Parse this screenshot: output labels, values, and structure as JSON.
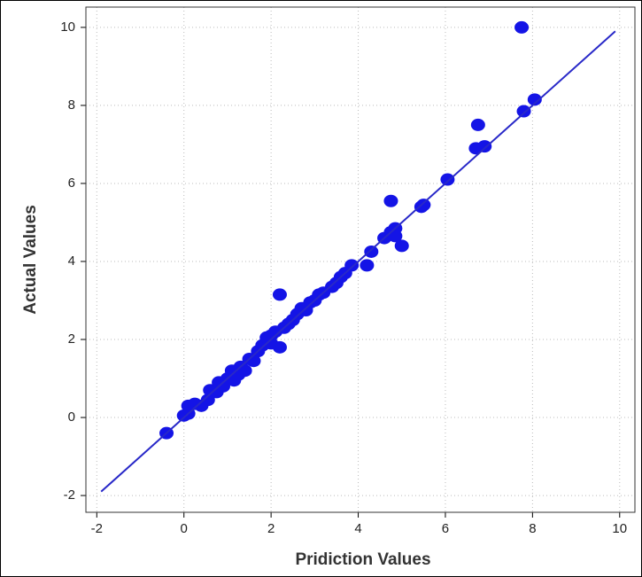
{
  "chart_data": {
    "type": "scatter",
    "x_label": "Pridiction Values",
    "y_label": "Actual Values",
    "xlim": [
      -2.25,
      10.35
    ],
    "ylim": [
      -2.43,
      10.52
    ],
    "xticks": [
      -2,
      0,
      2,
      4,
      6,
      8,
      10
    ],
    "yticks": [
      -2,
      0,
      2,
      4,
      6,
      8,
      10
    ],
    "grid": true,
    "series": [
      {
        "color": "#1414e6",
        "x": [
          -0.4,
          0,
          0.1,
          0.1,
          0.25,
          0.4,
          0.55,
          0.6,
          0.75,
          0.8,
          0.9,
          1.0,
          1.1,
          1.15,
          1.25,
          1.3,
          1.4,
          1.5,
          1.6,
          1.7,
          1.8,
          1.9,
          2.0,
          2.0,
          2.1,
          2.2,
          2.2,
          2.3,
          2.4,
          2.5,
          2.6,
          2.7,
          2.8,
          2.9,
          3.0,
          3.1,
          3.2,
          3.4,
          3.5,
          3.6,
          3.7,
          3.85,
          4.2,
          4.3,
          4.6,
          4.75,
          4.75,
          4.85,
          4.85,
          5.0,
          5.45,
          5.5,
          6.05,
          6.7,
          6.75,
          6.9,
          7.75,
          7.8,
          8.05
        ],
        "y": [
          -0.4,
          0.05,
          0.1,
          0.3,
          0.35,
          0.3,
          0.45,
          0.7,
          0.65,
          0.9,
          0.8,
          1.0,
          1.2,
          0.95,
          1.1,
          1.3,
          1.2,
          1.5,
          1.45,
          1.7,
          1.85,
          2.05,
          1.9,
          2.1,
          2.2,
          3.15,
          1.8,
          2.3,
          2.4,
          2.5,
          2.65,
          2.8,
          2.75,
          2.95,
          3.0,
          3.15,
          3.2,
          3.35,
          3.45,
          3.6,
          3.7,
          3.9,
          3.9,
          4.25,
          4.6,
          4.75,
          5.55,
          4.85,
          4.65,
          4.4,
          5.4,
          5.45,
          6.1,
          6.9,
          7.5,
          6.95,
          10.0,
          7.85,
          8.15
        ]
      },
      {
        "type": "line",
        "color": "#2828c8",
        "x": [
          -1.9,
          9.9
        ],
        "y": [
          -1.9,
          9.9
        ]
      }
    ]
  }
}
